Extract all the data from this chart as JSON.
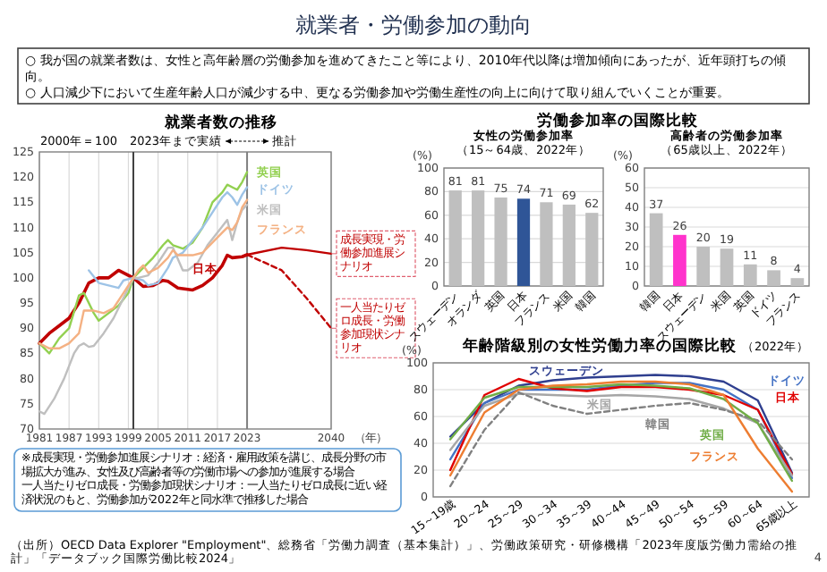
{
  "chart_data": [
    {
      "type": "other",
      "title": "就業者・労働参加の動向",
      "annotations": [
        "○ 我が国の就業者数は、女性と高年齢層の労働参加を進めてきたこと等により、2010年代以降は増加傾向にあったが、近年頭打ちの傾向。",
        "○ 人口減少下において生産年齢人口が減少する中、更なる労働参加や労働生産性の向上に向けて取り組んでいくことが重要。",
        "労働参加率の国際比較",
        "（出所）OECD Data Explorer \"Employment\"、総務省「労働力調査（基本集計）」、労働政策研究・研修機構「2023年度版労働力需給の推計」「データブック国際労働比較2024」",
        "4"
      ]
    },
    {
      "type": "line",
      "title": "就業者数の推移",
      "subtitle": "2000年＝100",
      "xlabel": "（年）",
      "xlim": [
        1981,
        2040
      ],
      "xticks": [
        1981,
        1987,
        1993,
        1999,
        2005,
        2011,
        2017,
        2023,
        2040
      ],
      "ylim": [
        70,
        125
      ],
      "yticks": [
        70,
        75,
        80,
        85,
        90,
        95,
        100,
        105,
        110,
        115,
        120,
        125
      ],
      "grid": "x",
      "ref_lines": [
        {
          "axis": "x",
          "value": 2000,
          "color": "#404040"
        },
        {
          "axis": "x",
          "value": 2023,
          "color": "#808080"
        }
      ],
      "series": [
        {
          "name": "日本",
          "color": "#c00000",
          "x": [
            1981,
            1983,
            1985,
            1987,
            1989,
            1991,
            1993,
            1995,
            1997,
            1999,
            2000,
            2002,
            2004,
            2006,
            2007,
            2009,
            2012,
            2014,
            2016,
            2018,
            2019,
            2020,
            2022,
            2023
          ],
          "values": [
            87,
            89,
            90.5,
            92,
            95,
            99,
            100,
            100,
            101.5,
            100.5,
            100,
            98.3,
            98.5,
            99.5,
            99.3,
            98,
            97.6,
            98.5,
            100,
            102.5,
            104.5,
            104,
            104.2,
            104.6
          ]
        },
        {
          "name": "英国",
          "color": "#92d050",
          "x": [
            1981,
            1983,
            1985,
            1987,
            1989,
            1990,
            1992,
            1993,
            1995,
            1997,
            1999,
            2000,
            2002,
            2004,
            2006,
            2007,
            2008,
            2010,
            2012,
            2014,
            2016,
            2018,
            2019,
            2020,
            2021,
            2022,
            2023
          ],
          "values": [
            87,
            85,
            88,
            90,
            96.5,
            97,
            93,
            91.5,
            93,
            94.5,
            97,
            100,
            102,
            104,
            106.5,
            107.5,
            106.5,
            105.8,
            107,
            110,
            115,
            117,
            118.5,
            118,
            117.5,
            119,
            121
          ]
        },
        {
          "name": "ドイツ",
          "color": "#9dc3e6",
          "x": [
            1991,
            1993,
            1995,
            1997,
            1998,
            2000,
            2002,
            2003,
            2005,
            2007,
            2008,
            2010,
            2012,
            2014,
            2016,
            2018,
            2019,
            2020,
            2021,
            2022,
            2023
          ],
          "values": [
            101.5,
            99,
            98.5,
            98,
            99.5,
            100,
            99.5,
            98.5,
            99,
            102,
            104,
            105,
            107.5,
            110,
            113,
            116,
            117,
            116,
            114.5,
            116.5,
            118
          ]
        },
        {
          "name": "米国",
          "color": "#bfbfbf",
          "x": [
            1981,
            1982,
            1984,
            1986,
            1988,
            1989,
            1990,
            1991,
            1992,
            1994,
            1996,
            1998,
            2000,
            2001,
            2003,
            2005,
            2007,
            2008,
            2010,
            2011,
            2013,
            2015,
            2017,
            2019,
            2020,
            2021,
            2022,
            2023
          ],
          "values": [
            73.5,
            73,
            76,
            80,
            85,
            86.5,
            87,
            86.3,
            86.5,
            89,
            92,
            96,
            100,
            100,
            100.5,
            103,
            106,
            106,
            101.5,
            101.5,
            103,
            106.5,
            109,
            111.5,
            107.5,
            111,
            113.5,
            114.5
          ]
        },
        {
          "name": "フランス",
          "color": "#f4b183",
          "x": [
            1981,
            1983,
            1985,
            1987,
            1989,
            1990,
            1992,
            1994,
            1996,
            1998,
            2000,
            2001,
            2002,
            2003,
            2005,
            2007,
            2008,
            2009,
            2012,
            2014,
            2016,
            2018,
            2019,
            2020,
            2021,
            2022,
            2023
          ],
          "values": [
            87,
            86,
            86,
            87,
            89,
            93.5,
            93.5,
            93,
            94,
            97,
            100,
            101.5,
            102.5,
            101,
            102,
            104,
            105.5,
            104.5,
            104.5,
            105,
            107,
            109,
            110,
            109.5,
            111,
            114,
            115.5
          ]
        },
        {
          "color": "#c00000",
          "x": [
            2023,
            2030,
            2035,
            2040
          ],
          "values": [
            104.6,
            106,
            105.5,
            104.8
          ]
        },
        {
          "color": "#c00000",
          "line_style": "dashed",
          "x": [
            2023,
            2030,
            2035,
            2040
          ],
          "values": [
            104.6,
            101.5,
            96,
            90
          ]
        }
      ],
      "annotations": [
        "2023年まで実績",
        "推計",
        "※成長実現・労働参加進展シナリオ：経済・雇用政策を講じ、成長分野の市場拡大が進み、女性及び高齢者等の労働市場への参加が進展する場合",
        "一人当たりゼロ成長・労働参加現状シナリオ：一人当たりゼロ成長に近い経済状況のもと、労働参加が2022年と同水準で推移した場合",
        {
          "text": "成長実現・労働参加進展シナリオ",
          "x": 2040,
          "y": 104.8
        },
        {
          "text": "一人当たりゼロ成長・労働参加現状シナリオ",
          "x": 2040,
          "y": 90
        }
      ]
    },
    {
      "type": "bar",
      "title": "女性の労働参加率",
      "subtitle": "（15～64歳、2022年）",
      "ylabel": "(%)",
      "categories": [
        "スウェーデン",
        "オランダ",
        "英国",
        "日本",
        "フランス",
        "米国",
        "韓国"
      ],
      "values": [
        81,
        81,
        75,
        74,
        71,
        69,
        62
      ],
      "colors": [
        "#bfbfbf",
        "#bfbfbf",
        "#bfbfbf",
        "#2f5597",
        "#bfbfbf",
        "#bfbfbf",
        "#bfbfbf"
      ],
      "ylim": [
        0,
        100
      ],
      "yticks": [
        0,
        20,
        40,
        60,
        80,
        100
      ],
      "grid": "y",
      "data_labels": true
    },
    {
      "type": "bar",
      "title": "高齢者の労働参加率",
      "subtitle": "（65歳以上、2022年）",
      "ylabel": "(%)",
      "categories": [
        "韓国",
        "日本",
        "スウェーデン",
        "米国",
        "英国",
        "ドイツ",
        "フランス"
      ],
      "values": [
        37,
        26,
        20,
        19,
        11,
        8,
        4
      ],
      "colors": [
        "#bfbfbf",
        "#ff33cc",
        "#bfbfbf",
        "#bfbfbf",
        "#bfbfbf",
        "#bfbfbf",
        "#bfbfbf"
      ],
      "ylim": [
        0,
        60
      ],
      "yticks": [
        0,
        10,
        20,
        30,
        40,
        50,
        60
      ],
      "grid": "y",
      "data_labels": true
    },
    {
      "type": "line",
      "title": "年齢階級別の女性労働力率の国際比較",
      "subtitle": "（2022年）",
      "ylabel": "(%)",
      "categories": [
        "15～19歳",
        "20～24",
        "25～29",
        "30～34",
        "35～39",
        "40～44",
        "45～49",
        "50～54",
        "55～59",
        "60～64",
        "65歳以上"
      ],
      "ylim": [
        0,
        100
      ],
      "yticks": [
        0,
        20,
        40,
        60,
        80,
        100
      ],
      "grid": "y",
      "series": [
        {
          "name": "スウェーデン",
          "color": "#2f3f8f",
          "values": [
            45,
            70,
            83,
            87,
            89,
            90,
            91,
            90,
            86,
            72,
            18
          ]
        },
        {
          "name": "ドイツ",
          "color": "#4472c4",
          "values": [
            28,
            70,
            80,
            80,
            80,
            83,
            85,
            85,
            80,
            65,
            14
          ]
        },
        {
          "name": "日本",
          "color": "#e00000",
          "values": [
            20,
            76,
            88,
            81,
            79,
            82,
            82,
            80,
            76,
            65,
            17
          ]
        },
        {
          "name": "米国",
          "color": "#a6a6a6",
          "values": [
            35,
            68,
            77,
            76,
            75,
            76,
            75,
            73,
            66,
            55,
            16
          ]
        },
        {
          "name": "韓国",
          "color": "#808080",
          "line_style": "dashed",
          "values": [
            8,
            50,
            78,
            68,
            62,
            65,
            68,
            70,
            65,
            57,
            28
          ]
        },
        {
          "name": "英国",
          "color": "#70ad47",
          "values": [
            43,
            74,
            82,
            82,
            82,
            84,
            83,
            81,
            73,
            55,
            12
          ]
        },
        {
          "name": "フランス",
          "color": "#ed7d31",
          "values": [
            16,
            63,
            80,
            83,
            84,
            86,
            86,
            84,
            76,
            36,
            4
          ]
        }
      ]
    }
  ]
}
